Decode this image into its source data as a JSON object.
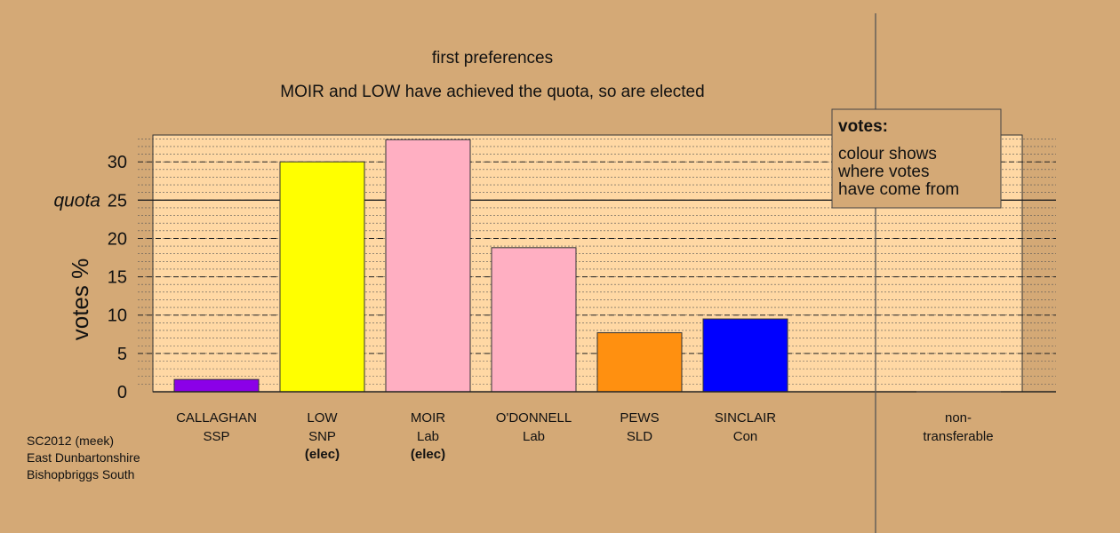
{
  "chart_data": {
    "type": "bar",
    "title": "first preferences",
    "subtitle": "MOIR and LOW have achieved the quota, so are elected",
    "ylabel": "votes %",
    "ylim": [
      0,
      33.5
    ],
    "yticks": [
      0,
      5,
      10,
      15,
      20,
      25,
      30
    ],
    "quota": {
      "label": "quota",
      "value": 25
    },
    "grid": true,
    "categories": [
      {
        "name": "CALLAGHAN",
        "party": "SSP",
        "status": "",
        "value": 1.6,
        "color": "#8b00e8"
      },
      {
        "name": "LOW",
        "party": "SNP",
        "status": "(elec)",
        "value": 30.0,
        "color": "#ffff00"
      },
      {
        "name": "MOIR",
        "party": "Lab",
        "status": "(elec)",
        "value": 32.9,
        "color": "#ffafc2"
      },
      {
        "name": "O'DONNELL",
        "party": "Lab",
        "status": "",
        "value": 18.8,
        "color": "#ffafc2"
      },
      {
        "name": "PEWS",
        "party": "SLD",
        "status": "",
        "value": 7.7,
        "color": "#ff9010"
      },
      {
        "name": "SINCLAIR",
        "party": "Con",
        "status": "",
        "value": 9.5,
        "color": "#0000ff"
      }
    ],
    "non_transferable": {
      "label_line1": "non-",
      "label_line2": "transferable",
      "value": 0
    },
    "legend": {
      "placement": "top-right",
      "title": "votes:",
      "lines": [
        "colour shows",
        "where votes",
        "have come from"
      ]
    },
    "colors": {
      "plot_background": "#ffd8a4",
      "page_background": "#d4a976"
    }
  },
  "footnote": {
    "line1": "SC2012 (meek)",
    "line2": "East Dunbartonshire",
    "line3": "Bishopbriggs South"
  }
}
